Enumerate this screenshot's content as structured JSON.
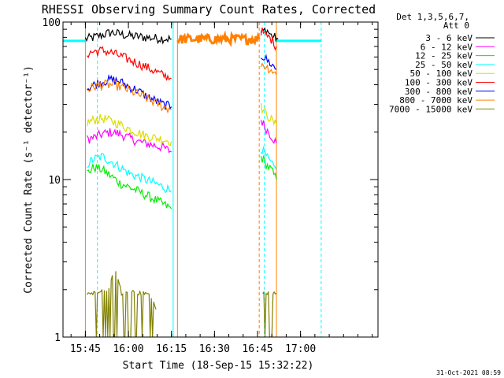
{
  "chart_data": {
    "type": "line",
    "title": "RHESSI Observing Summary Count Rates, Corrected",
    "xlabel": "Start Time (18-Sep-15 15:32:22)",
    "ylabel": "Corrected Count Rate (s⁻¹ detector⁻¹)",
    "yscale": "log",
    "xlim": [
      15.62,
      17.45
    ],
    "ylim": [
      1,
      100
    ],
    "xticks": [
      {
        "value": 15.75,
        "label": "15:45"
      },
      {
        "value": 16.0,
        "label": "16:00"
      },
      {
        "value": 16.25,
        "label": "16:15"
      },
      {
        "value": 16.5,
        "label": "16:30"
      },
      {
        "value": 16.75,
        "label": "16:45"
      },
      {
        "value": 17.0,
        "label": "17:00"
      }
    ],
    "yticks": [
      {
        "value": 1,
        "label": "1"
      },
      {
        "value": 10,
        "label": "10"
      },
      {
        "value": 100,
        "label": "100"
      }
    ],
    "legend": {
      "placement": "right",
      "header": [
        "Det 1,3,5,6,7,",
        "Att 0"
      ],
      "entries": [
        {
          "label": "3 - 6 keV",
          "color": "#000000"
        },
        {
          "label": "6 - 12 keV",
          "color": "#ff00ff"
        },
        {
          "label": "12 - 25 keV",
          "color": "#00ee00"
        },
        {
          "label": "25 - 50 keV",
          "color": "#00ffff"
        },
        {
          "label": "50 - 100 keV",
          "color": "#dddd00"
        },
        {
          "label": "100 - 300 keV",
          "color": "#ff0000"
        },
        {
          "label": "300 - 800 keV",
          "color": "#0000ff"
        },
        {
          "label": "800 - 7000 keV",
          "color": "#ff8000"
        },
        {
          "label": "7000 - 15000 keV",
          "color": "#808000"
        }
      ]
    },
    "series": [
      {
        "name": "3 - 6 keV",
        "color": "#000000",
        "segments": [
          {
            "x": [
              15.75,
              15.8,
              15.85,
              15.9,
              15.95,
              16.0,
              16.05,
              16.1,
              16.15,
              16.2,
              16.25
            ],
            "y": [
              78,
              80,
              83,
              86,
              84,
              82,
              81,
              80,
              79,
              79,
              78
            ]
          },
          {
            "x": [
              16.77,
              16.8,
              16.83,
              16.87
            ],
            "y": [
              85,
              90,
              82,
              78
            ]
          }
        ]
      },
      {
        "name": "6 - 12 keV",
        "color": "#ff00ff",
        "segments": [
          {
            "x": [
              15.76,
              15.8,
              15.85,
              15.9,
              15.95,
              16.0,
              16.05,
              16.1,
              16.15,
              16.2,
              16.25
            ],
            "y": [
              18,
              18.5,
              19.5,
              20,
              19.5,
              18.5,
              17.5,
              17,
              16.5,
              16,
              15
            ]
          },
          {
            "x": [
              16.77,
              16.8,
              16.83,
              16.86
            ],
            "y": [
              24,
              21,
              19,
              17
            ]
          }
        ]
      },
      {
        "name": "12 - 25 keV",
        "color": "#00ee00",
        "segments": [
          {
            "x": [
              15.76,
              15.8,
              15.85,
              15.9,
              15.95,
              16.0,
              16.05,
              16.1,
              16.15,
              16.2,
              16.25
            ],
            "y": [
              11,
              12,
              11.5,
              10.5,
              9.5,
              9,
              8.5,
              8,
              7.5,
              7,
              6.5
            ]
          },
          {
            "x": [
              16.77,
              16.8,
              16.83,
              16.86
            ],
            "y": [
              14,
              12.5,
              11.5,
              10
            ]
          }
        ]
      },
      {
        "name": "25 - 50 keV",
        "color": "#00ffff",
        "segments": [
          {
            "x": [
              15.76,
              15.8,
              15.85,
              15.9,
              15.95,
              16.0,
              16.05,
              16.1,
              16.15,
              16.2,
              16.25
            ],
            "y": [
              12.5,
              13.5,
              14,
              13,
              12,
              11,
              10.5,
              10,
              9.5,
              9,
              8.5
            ]
          },
          {
            "x": [
              16.77,
              16.8,
              16.83,
              16.86
            ],
            "y": [
              16,
              14,
              12.5,
              11.5
            ]
          }
        ]
      },
      {
        "name": "50 - 100 keV",
        "color": "#dddd00",
        "segments": [
          {
            "x": [
              15.76,
              15.8,
              15.85,
              15.9,
              15.95,
              16.0,
              16.05,
              16.1,
              16.15,
              16.2,
              16.25
            ],
            "y": [
              23,
              24,
              24.5,
              23.5,
              22.5,
              21,
              20,
              19,
              18.5,
              18,
              17.5
            ]
          },
          {
            "x": [
              16.77,
              16.8,
              16.83,
              16.86
            ],
            "y": [
              29,
              26,
              24,
              22
            ]
          }
        ]
      },
      {
        "name": "100 - 300 keV",
        "color": "#ff0000",
        "segments": [
          {
            "x": [
              15.76,
              15.8,
              15.85,
              15.9,
              15.95,
              16.0,
              16.05,
              16.1,
              16.15,
              16.2,
              16.25
            ],
            "y": [
              63,
              65,
              66,
              64,
              61,
              58,
              55,
              52,
              49,
              46,
              44
            ]
          },
          {
            "x": [
              16.77,
              16.8,
              16.83,
              16.86
            ],
            "y": [
              88,
              82,
              78,
              70
            ]
          }
        ]
      },
      {
        "name": "300 - 800 keV",
        "color": "#0000ff",
        "segments": [
          {
            "x": [
              15.76,
              15.8,
              15.85,
              15.9,
              15.95,
              16.0,
              16.05,
              16.1,
              16.15,
              16.2,
              16.25
            ],
            "y": [
              38,
              40,
              42,
              43,
              42,
              39,
              37,
              34,
              32,
              30,
              29
            ]
          },
          {
            "x": [
              16.77,
              16.8,
              16.83,
              16.86
            ],
            "y": [
              62,
              58,
              54,
              50
            ]
          }
        ]
      },
      {
        "name": "800 - 7000 keV",
        "color": "#ff8000",
        "segments": [
          {
            "x": [
              15.76,
              15.8,
              15.85,
              15.9,
              15.95,
              16.0,
              16.05,
              16.1,
              16.15,
              16.2,
              16.25
            ],
            "y": [
              37,
              39,
              40,
              40,
              39,
              37,
              35,
              33,
              31,
              29,
              28
            ]
          },
          {
            "x": [
              16.285,
              16.4,
              16.5,
              16.6,
              16.7,
              16.76
            ],
            "y": [
              78,
              78,
              78,
              78,
              78,
              78
            ]
          },
          {
            "x": [
              16.77,
              16.8,
              16.83,
              16.86
            ],
            "y": [
              55,
              52,
              50,
              46
            ]
          }
        ]
      },
      {
        "name": "7000 - 15000 keV",
        "color": "#808000",
        "segments": [
          {
            "x": [
              15.76,
              15.8,
              15.84,
              15.88,
              15.92,
              15.96,
              16.0,
              16.04,
              16.08,
              16.12,
              16.16
            ],
            "y": [
              1.9,
              1.9,
              2.0,
              1.9,
              2.7,
              1.9,
              2.0,
              1.9,
              1.9,
              1.9,
              1.5
            ]
          },
          {
            "x": [
              16.78,
              16.8,
              16.82,
              16.84,
              16.86
            ],
            "y": [
              1.9,
              1.9,
              1.9,
              1.9,
              1.9
            ]
          }
        ]
      }
    ],
    "saa_level": {
      "value": 76,
      "color": "#00ffff",
      "x": [
        15.62,
        15.75,
        16.86,
        17.12
      ]
    },
    "markers": [
      {
        "x": 15.62,
        "color": "#00ffff",
        "style": "solid"
      },
      {
        "x": 15.75,
        "color": "#ff8000",
        "style": "solid"
      },
      {
        "x": 15.82,
        "color": "#00ffff",
        "style": "dashed"
      },
      {
        "x": 16.26,
        "color": "#00ffff",
        "style": "solid"
      },
      {
        "x": 16.285,
        "color": "#ff8000",
        "style": "solid"
      },
      {
        "x": 16.76,
        "color": "#ff8000",
        "style": "dashed"
      },
      {
        "x": 16.79,
        "color": "#00ffff",
        "style": "dashed"
      },
      {
        "x": 16.86,
        "color": "#ff8000",
        "style": "solid"
      },
      {
        "x": 17.12,
        "color": "#00ffff",
        "style": "dashed"
      }
    ]
  },
  "timestamp": "31-Oct-2021 08:59"
}
